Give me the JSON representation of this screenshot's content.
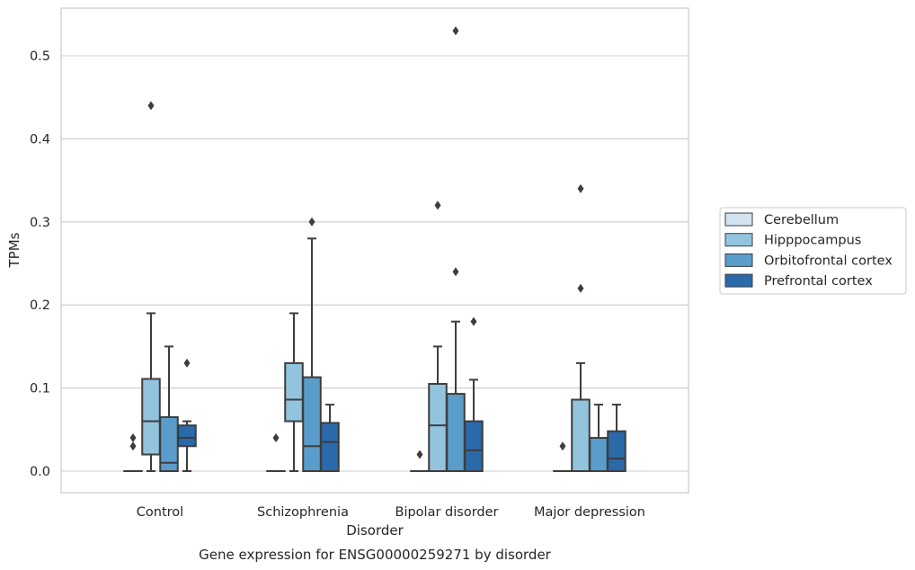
{
  "chart_data": {
    "type": "box",
    "title": "",
    "caption": "Gene expression for ENSG00000259271 by disorder",
    "xlabel": "Disorder",
    "ylabel": "TPMs",
    "ylim": [
      -0.025,
      0.557
    ],
    "yticks": [
      0.0,
      0.1,
      0.2,
      0.3,
      0.4,
      0.5
    ],
    "ytick_labels": [
      "0.0",
      "0.1",
      "0.2",
      "0.3",
      "0.4",
      "0.5"
    ],
    "grid": "horizontal",
    "legend_position": "right",
    "categories": [
      "Control",
      "Schizophrenia",
      "Bipolar disorder",
      "Major depression"
    ],
    "series": [
      {
        "name": "Cerebellum",
        "color": "#d3e3f0",
        "boxes": [
          {
            "whislo": 0.0,
            "q1": 0.0,
            "med": 0.0,
            "q3": 0.0,
            "whishi": 0.0,
            "fliers": [
              0.03,
              0.04
            ]
          },
          {
            "whislo": 0.0,
            "q1": 0.0,
            "med": 0.0,
            "q3": 0.0,
            "whishi": 0.0,
            "fliers": [
              0.04
            ]
          },
          {
            "whislo": 0.0,
            "q1": 0.0,
            "med": 0.0,
            "q3": 0.0,
            "whishi": 0.0,
            "fliers": [
              0.02
            ]
          },
          {
            "whislo": 0.0,
            "q1": 0.0,
            "med": 0.0,
            "q3": 0.0,
            "whishi": 0.0,
            "fliers": [
              0.03
            ]
          }
        ]
      },
      {
        "name": "Hipppocampus",
        "color": "#93c4de",
        "boxes": [
          {
            "whislo": 0.0,
            "q1": 0.02,
            "med": 0.06,
            "q3": 0.111,
            "whishi": 0.19,
            "fliers": [
              0.44
            ]
          },
          {
            "whislo": 0.0,
            "q1": 0.06,
            "med": 0.086,
            "q3": 0.13,
            "whishi": 0.19,
            "fliers": []
          },
          {
            "whislo": 0.0,
            "q1": 0.0,
            "med": 0.055,
            "q3": 0.105,
            "whishi": 0.15,
            "fliers": [
              0.32
            ]
          },
          {
            "whislo": 0.0,
            "q1": 0.0,
            "med": 0.0,
            "q3": 0.086,
            "whishi": 0.13,
            "fliers": [
              0.22,
              0.34
            ]
          }
        ]
      },
      {
        "name": "Orbitofrontal cortex",
        "color": "#5a9dcb",
        "boxes": [
          {
            "whislo": 0.0,
            "q1": 0.0,
            "med": 0.01,
            "q3": 0.065,
            "whishi": 0.15,
            "fliers": []
          },
          {
            "whislo": 0.0,
            "q1": 0.0,
            "med": 0.03,
            "q3": 0.113,
            "whishi": 0.28,
            "fliers": [
              0.3
            ]
          },
          {
            "whislo": 0.0,
            "q1": 0.0,
            "med": 0.0,
            "q3": 0.093,
            "whishi": 0.18,
            "fliers": [
              0.24,
              0.53
            ]
          },
          {
            "whislo": 0.0,
            "q1": 0.0,
            "med": 0.0,
            "q3": 0.04,
            "whishi": 0.08,
            "fliers": []
          }
        ]
      },
      {
        "name": "Prefrontal cortex",
        "color": "#2a6aaa",
        "boxes": [
          {
            "whislo": 0.0,
            "q1": 0.03,
            "med": 0.04,
            "q3": 0.055,
            "whishi": 0.06,
            "fliers": [
              0.13
            ]
          },
          {
            "whislo": 0.0,
            "q1": 0.0,
            "med": 0.035,
            "q3": 0.058,
            "whishi": 0.08,
            "fliers": []
          },
          {
            "whislo": 0.0,
            "q1": 0.0,
            "med": 0.025,
            "q3": 0.06,
            "whishi": 0.11,
            "fliers": [
              0.18
            ]
          },
          {
            "whislo": 0.0,
            "q1": 0.0,
            "med": 0.015,
            "q3": 0.048,
            "whishi": 0.08,
            "fliers": []
          }
        ]
      }
    ]
  }
}
